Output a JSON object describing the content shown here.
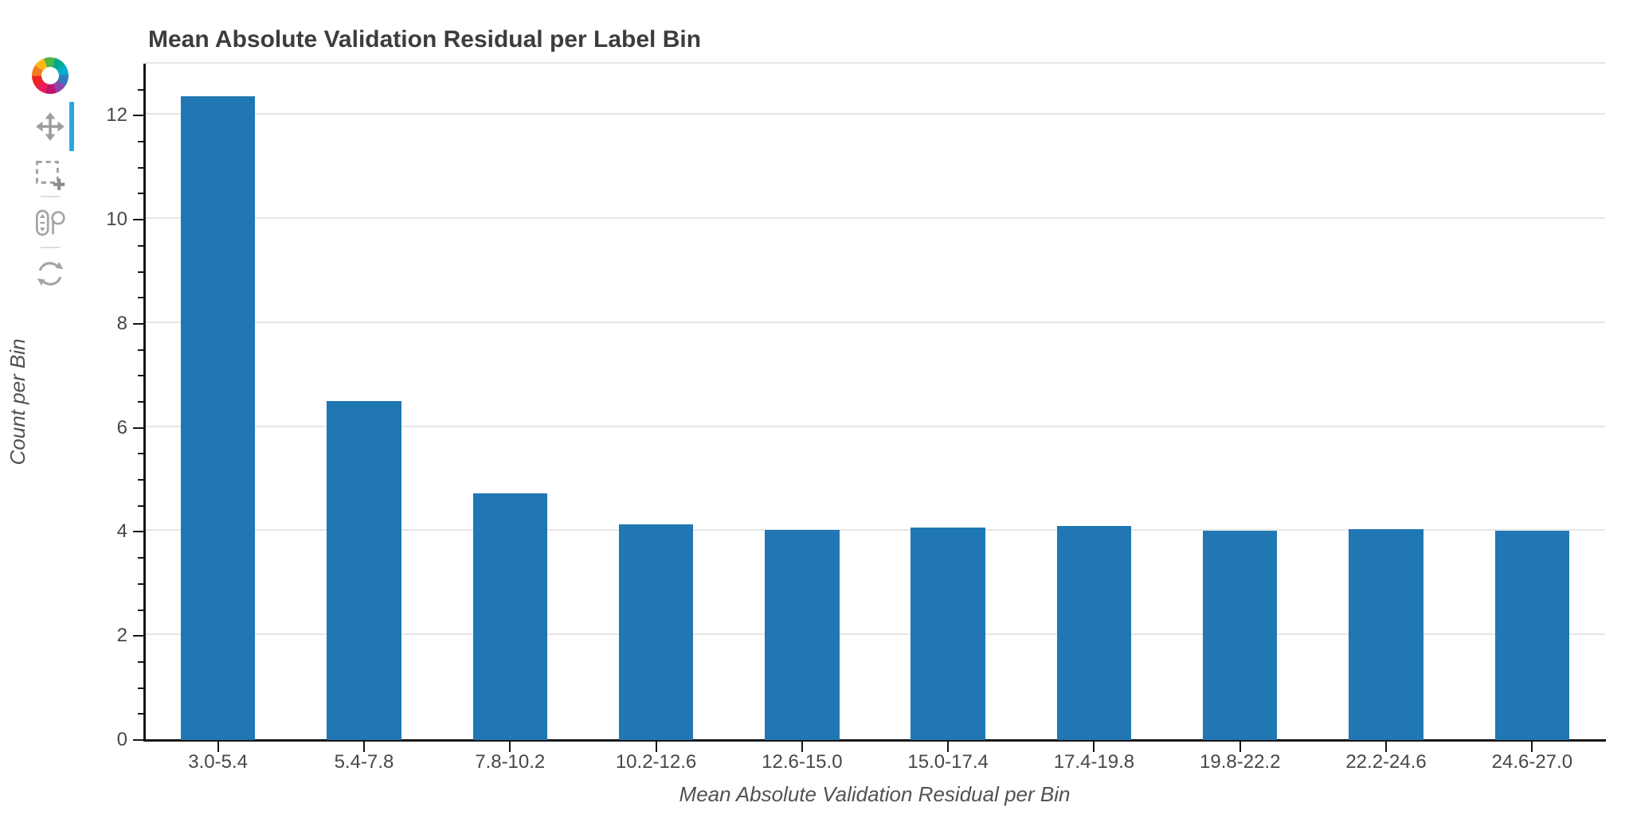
{
  "chart_data": {
    "type": "bar",
    "title": "Mean Absolute Validation Residual per Label Bin",
    "xlabel": "Mean Absolute Validation Residual per Bin",
    "ylabel": "Count per Bin",
    "categories": [
      "3.0-5.4",
      "5.4-7.8",
      "7.8-10.2",
      "10.2-12.6",
      "12.6-15.0",
      "15.0-17.4",
      "17.4-19.8",
      "19.8-22.2",
      "22.2-24.6",
      "24.6-27.0"
    ],
    "values": [
      12.37,
      6.51,
      4.74,
      4.14,
      4.04,
      4.08,
      4.11,
      4.02,
      4.05,
      4.02
    ],
    "ylim": [
      0,
      13
    ],
    "y_ticks": [
      0,
      2,
      4,
      6,
      8,
      10,
      12
    ],
    "y_minor_step": 0.5,
    "grid": "horizontal-major-only",
    "legend": "none",
    "bar_width_fraction": 0.51
  },
  "toolbar": {
    "logo_icon": "bokeh-logo",
    "tools": [
      {
        "icon": "pan-move-icon",
        "active": true
      },
      {
        "icon": "box-zoom-icon",
        "active": false
      },
      {
        "icon": "wheel-zoom-icon",
        "active": false
      },
      {
        "icon": "reset-icon",
        "active": false
      }
    ]
  },
  "colors": {
    "bar": "#2077b4",
    "active_tool_indicator": "#29a8e0",
    "gridline": "#e6e6e6",
    "axis_line": "#161616",
    "title_text": "#3d3d3d",
    "tick_label_text": "#474747",
    "axis_label_text": "#525252",
    "toolbar_icon": "#a3a3a3"
  }
}
